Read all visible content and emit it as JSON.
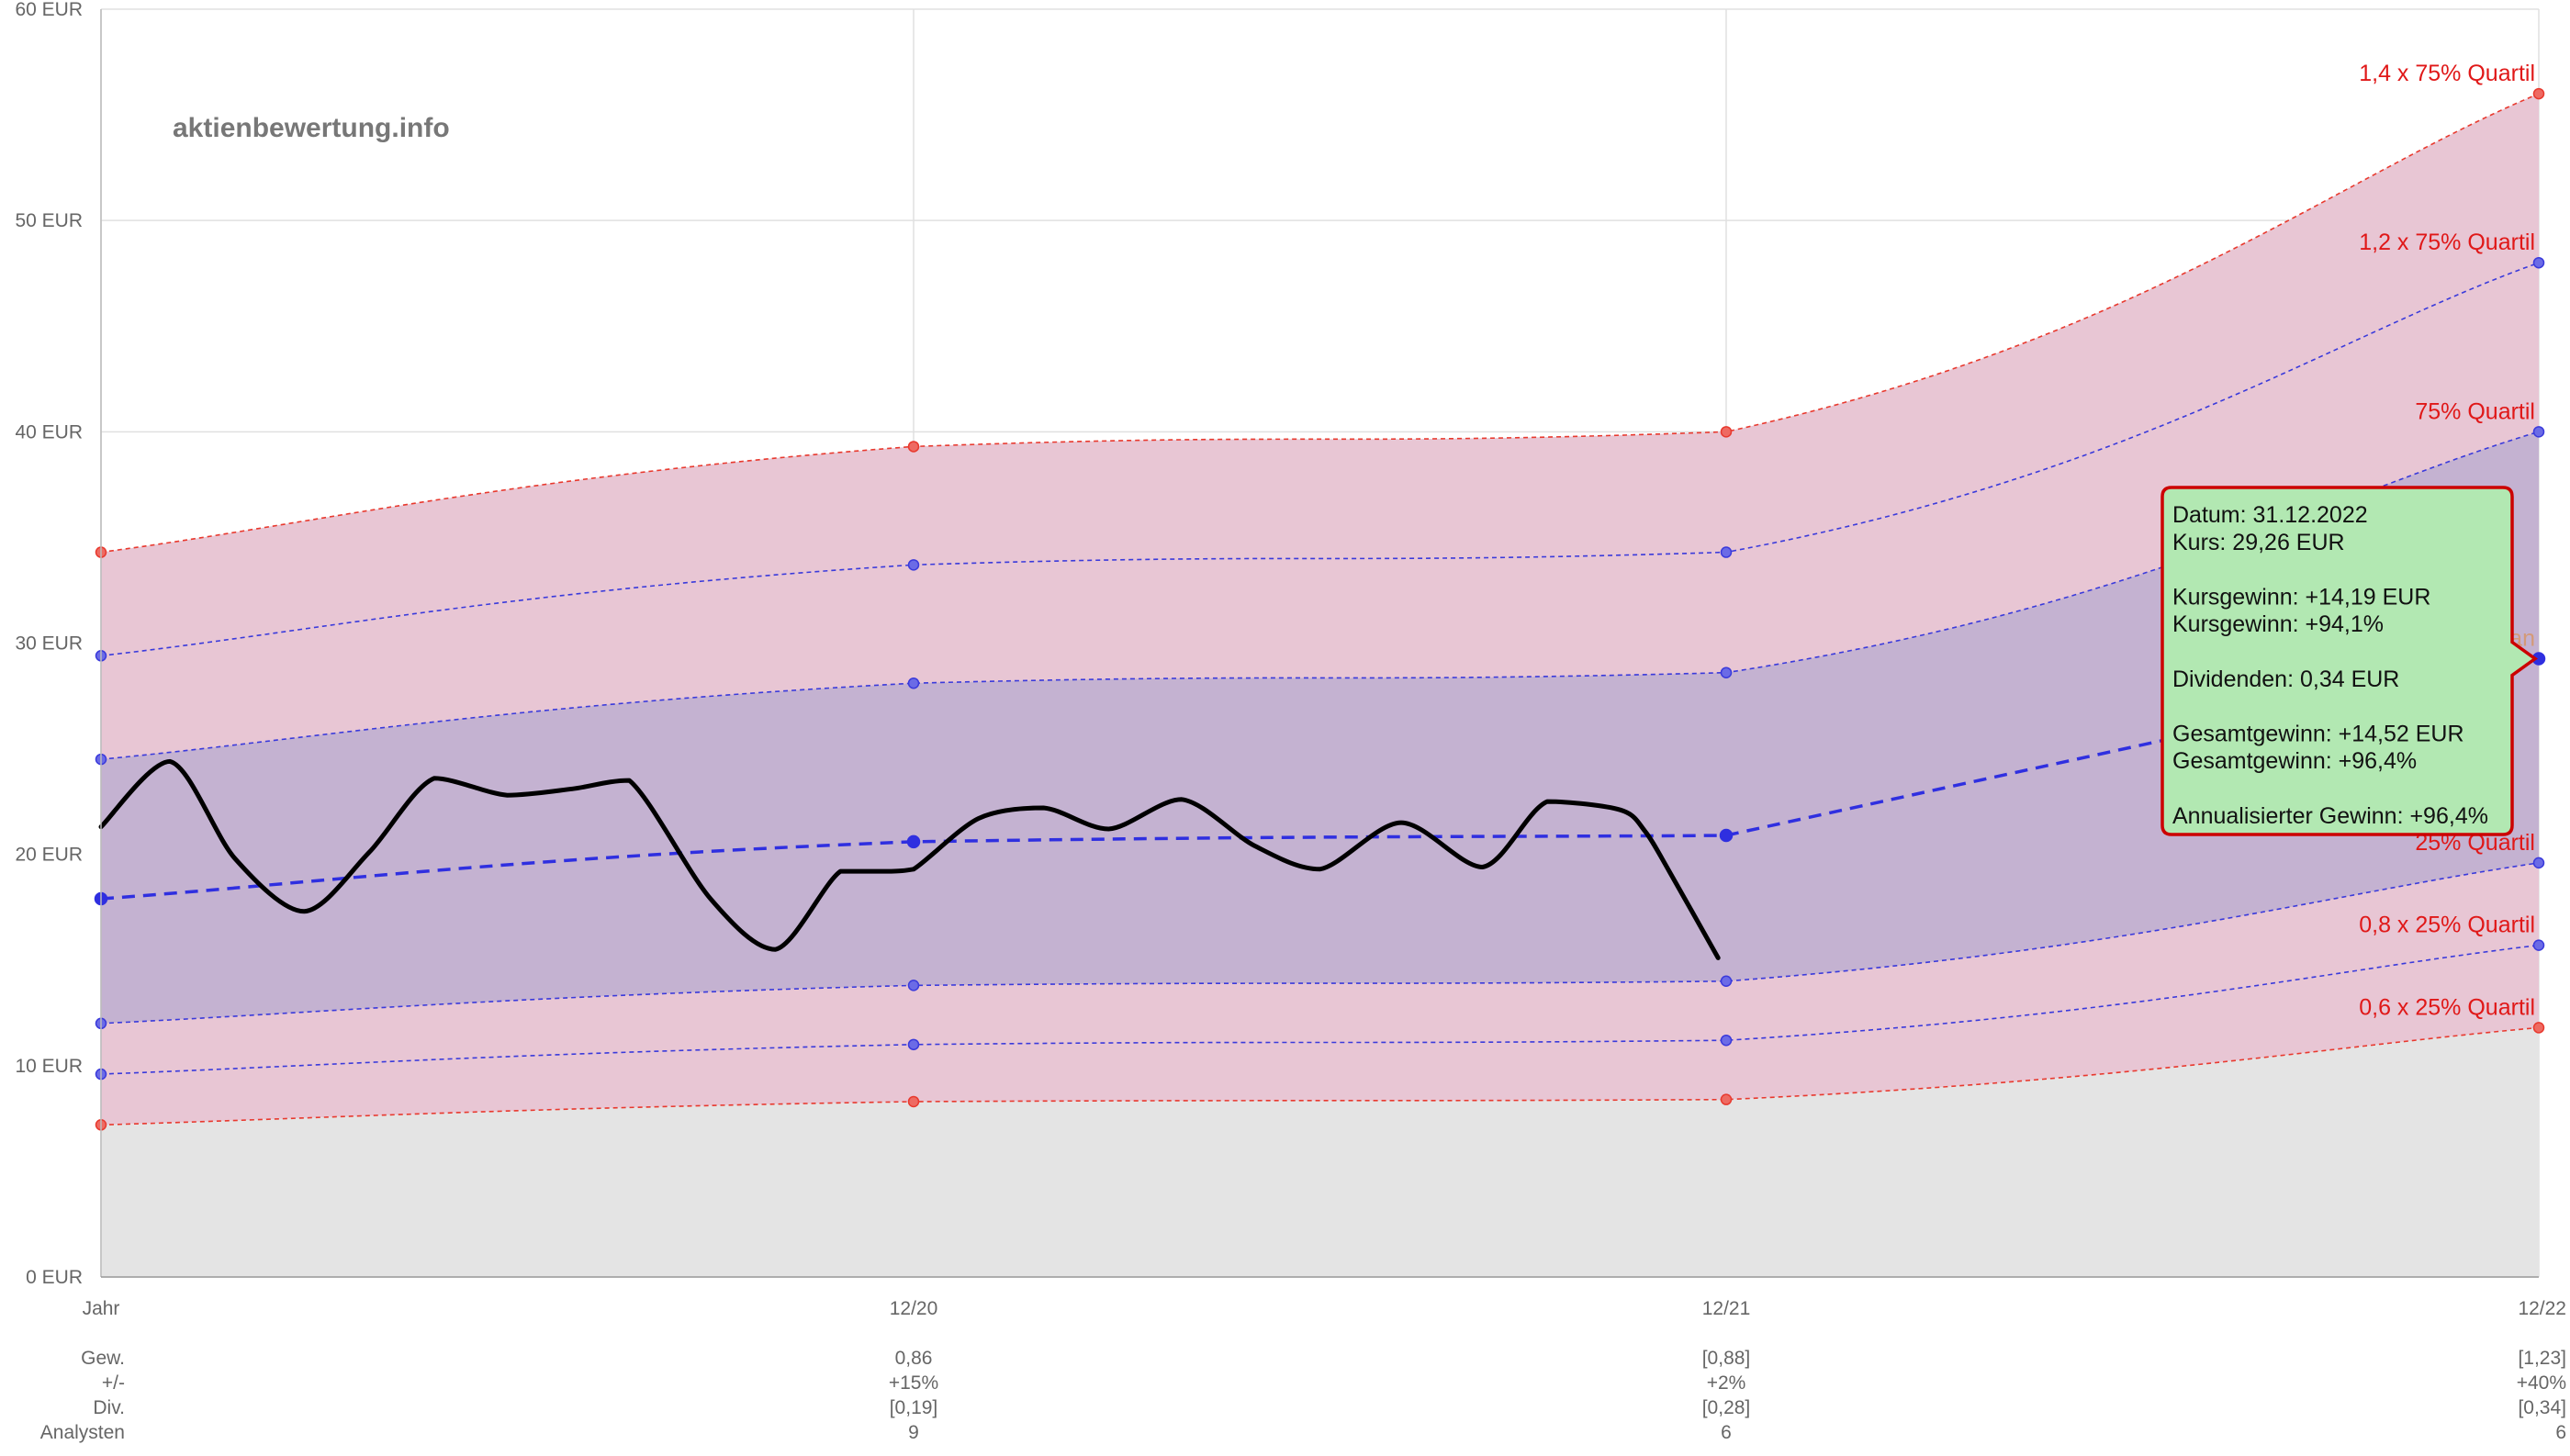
{
  "watermark": "aktienbewertung.info",
  "chart_data": {
    "type": "line",
    "title": "",
    "ylim": [
      0,
      60
    ],
    "y_ticks": [
      0,
      10,
      20,
      30,
      40,
      50,
      60
    ],
    "y_tick_labels": [
      "0 EUR",
      "10 EUR",
      "20 EUR",
      "30 EUR",
      "40 EUR",
      "50 EUR",
      "60 EUR"
    ],
    "x_domain": [
      0,
      3
    ],
    "x_ticks": [
      0,
      1,
      2,
      3
    ],
    "x_tick_labels": [
      "Jahr",
      "12/20",
      "12/21",
      "12/22"
    ],
    "table_row_labels": [
      "Gew.",
      "+/-",
      "Div.",
      "Analysten"
    ],
    "table_columns": [
      {
        "x": 1,
        "values": [
          "0,86",
          "+15%",
          "[0,19]",
          "9"
        ]
      },
      {
        "x": 2,
        "values": [
          "[0,88]",
          "+2%",
          "[0,28]",
          "6"
        ]
      },
      {
        "x": 3,
        "values": [
          "[1,23]",
          "+40%",
          "[0,34]",
          "6"
        ]
      }
    ],
    "series": [
      {
        "name": "1,4 x 75% Quartil",
        "role": "band",
        "color": "#e8392e",
        "x": [
          0,
          1,
          2,
          3
        ],
        "values": [
          34.3,
          39.3,
          40.0,
          56.0
        ]
      },
      {
        "name": "1,2 x 75% Quartil",
        "role": "band",
        "color": "#3a3adb",
        "x": [
          0,
          1,
          2,
          3
        ],
        "values": [
          29.4,
          33.7,
          34.3,
          48.0
        ]
      },
      {
        "name": "75% Quartil",
        "role": "band",
        "color": "#3a3adb",
        "x": [
          0,
          1,
          2,
          3
        ],
        "values": [
          24.5,
          28.1,
          28.6,
          40.0
        ]
      },
      {
        "name": "Median",
        "role": "median",
        "color": "#2f2fe0",
        "x": [
          0,
          1,
          2,
          3
        ],
        "values": [
          17.9,
          20.6,
          20.9,
          29.26
        ]
      },
      {
        "name": "25% Quartil",
        "role": "band",
        "color": "#3a3adb",
        "x": [
          0,
          1,
          2,
          3
        ],
        "values": [
          12.0,
          13.8,
          14.0,
          19.6
        ]
      },
      {
        "name": "0,8 x 25% Quartil",
        "role": "band",
        "color": "#3a3adb",
        "x": [
          0,
          1,
          2,
          3
        ],
        "values": [
          9.6,
          11.0,
          11.2,
          15.7
        ]
      },
      {
        "name": "0,6 x 25% Quartil",
        "role": "band",
        "color": "#e8392e",
        "x": [
          0,
          1,
          2,
          3
        ],
        "values": [
          7.2,
          8.3,
          8.4,
          11.8
        ]
      }
    ],
    "price": {
      "name": "Kurs",
      "color": "#000000",
      "x": [
        0,
        0.085,
        0.165,
        0.25,
        0.33,
        0.41,
        0.5,
        0.58,
        0.65,
        0.75,
        0.83,
        0.91,
        0.97,
        1.0,
        1.08,
        1.16,
        1.24,
        1.33,
        1.42,
        1.5,
        1.6,
        1.7,
        1.78,
        1.87,
        1.9,
        1.93,
        1.99
      ],
      "values": [
        21.3,
        24.4,
        19.8,
        17.3,
        20.1,
        23.6,
        22.8,
        23.1,
        23.5,
        17.9,
        15.5,
        19.2,
        19.2,
        19.3,
        21.7,
        22.2,
        21.2,
        22.6,
        20.4,
        19.3,
        21.5,
        19.4,
        22.5,
        22.1,
        21.1,
        19.2,
        15.1
      ]
    },
    "band_fills": {
      "outer": "#e8c6d4",
      "inner": "#c4b2d1",
      "base": "#e4e4e4"
    },
    "tooltip": {
      "x": 3,
      "lines": [
        "Datum: 31.12.2022",
        "Kurs: 29,26 EUR",
        "",
        "Kursgewinn: +14,19 EUR",
        "Kursgewinn: +94,1%",
        "",
        "Dividenden: 0,34 EUR",
        "",
        "Gesamtgewinn: +14,52 EUR",
        "Gesamtgewinn: +96,4%",
        "",
        "Annualisierter Gewinn: +96,4%"
      ],
      "fill": "#b2e8b2",
      "border": "#cc0000"
    }
  }
}
